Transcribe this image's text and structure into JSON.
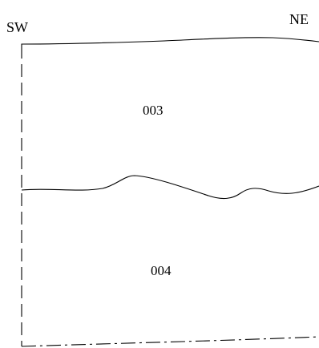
{
  "section": {
    "orientation": {
      "left": "SW",
      "right": "NE"
    },
    "contexts": [
      {
        "id": "003"
      },
      {
        "id": "004"
      }
    ]
  }
}
